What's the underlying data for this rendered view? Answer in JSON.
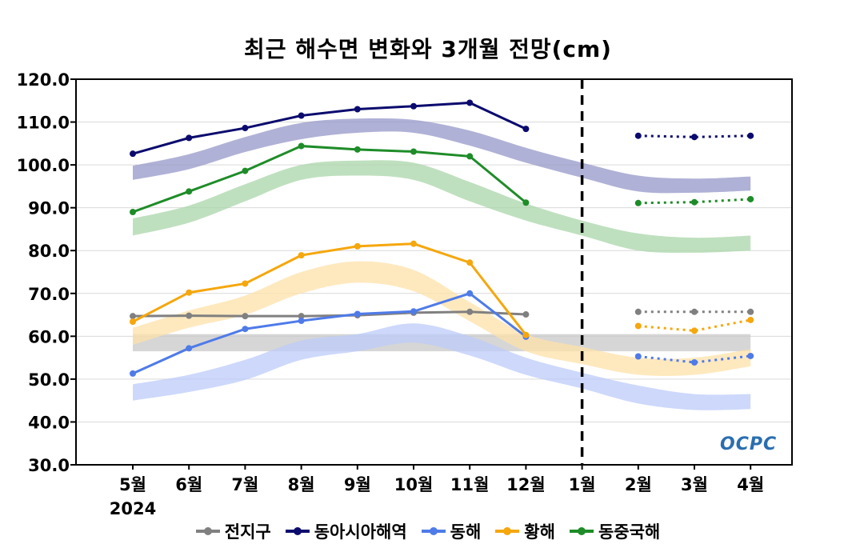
{
  "chart_data": {
    "type": "line",
    "title": "최근 해수면 변화와 3개월 전망(cm)",
    "categories": [
      "5월",
      "6월",
      "7월",
      "8월",
      "9월",
      "10월",
      "11월",
      "12월",
      "1월",
      "2월",
      "3월",
      "4월"
    ],
    "year_label": "2024",
    "yticks": [
      "120.0",
      "110.0",
      "100.0",
      "90.0",
      "80.0",
      "70.0",
      "60.0",
      "50.0",
      "40.0",
      "30.0"
    ],
    "ylim": [
      30,
      120
    ],
    "grid": true,
    "divider_at": "1월",
    "legend_position": "bottom",
    "series": [
      {
        "name": "전지구",
        "color": "#808080",
        "band_color": "#c8c8c8",
        "observed": [
          64.7,
          64.8,
          64.7,
          64.7,
          64.9,
          65.5,
          65.7,
          65.1,
          null,
          null,
          null,
          null
        ],
        "forecast": [
          null,
          null,
          null,
          null,
          null,
          null,
          null,
          null,
          null,
          65.7,
          65.7,
          65.7
        ],
        "band": [
          [
            56.5,
            60.5
          ],
          [
            56.5,
            60.5
          ],
          [
            56.5,
            60.5
          ],
          [
            56.5,
            60.5
          ],
          [
            56.5,
            60.5
          ],
          [
            56.5,
            60.5
          ],
          [
            56.5,
            60.5
          ],
          [
            56.5,
            60.5
          ],
          [
            56.5,
            60.5
          ],
          [
            56.5,
            60.5
          ],
          [
            56.5,
            60.5
          ],
          [
            56.5,
            60.5
          ]
        ]
      },
      {
        "name": "동아시아해역",
        "color": "#0b0b6e",
        "band_color": "#9597c8",
        "observed": [
          102.6,
          106.3,
          108.6,
          111.5,
          113.0,
          113.7,
          114.5,
          108.4,
          null,
          null,
          null,
          null
        ],
        "forecast": [
          null,
          null,
          null,
          null,
          null,
          null,
          null,
          null,
          null,
          106.8,
          106.5,
          106.8
        ],
        "band": [
          [
            96.5,
            99.8
          ],
          [
            99.0,
            102.5
          ],
          [
            103.0,
            106.5
          ],
          [
            106.0,
            109.8
          ],
          [
            107.5,
            110.8
          ],
          [
            107.5,
            110.5
          ],
          [
            104.5,
            108.0
          ],
          [
            100.5,
            104.0
          ],
          [
            97.0,
            100.5
          ],
          [
            93.8,
            97.5
          ],
          [
            93.5,
            96.8
          ],
          [
            94.0,
            97.3
          ]
        ]
      },
      {
        "name": "동해",
        "color": "#4f7be8",
        "band_color": "#bccbfa",
        "observed": [
          51.3,
          57.2,
          61.7,
          63.6,
          65.2,
          65.8,
          70.0,
          59.9,
          null,
          null,
          null,
          null
        ],
        "forecast": [
          null,
          null,
          null,
          null,
          null,
          null,
          null,
          null,
          null,
          55.3,
          53.9,
          55.4
        ],
        "band": [
          [
            45.0,
            48.8
          ],
          [
            47.0,
            51.0
          ],
          [
            49.8,
            54.5
          ],
          [
            54.5,
            59.0
          ],
          [
            56.5,
            60.5
          ],
          [
            58.5,
            63.0
          ],
          [
            55.5,
            60.0
          ],
          [
            51.0,
            55.0
          ],
          [
            47.8,
            51.5
          ],
          [
            44.3,
            48.5
          ],
          [
            42.8,
            46.5
          ],
          [
            43.0,
            46.5
          ]
        ]
      },
      {
        "name": "황해",
        "color": "#f5a70d",
        "band_color": "#fde1a9",
        "observed": [
          63.4,
          70.2,
          72.3,
          78.9,
          81.0,
          81.6,
          77.2,
          60.3,
          null,
          null,
          null,
          null
        ],
        "forecast": [
          null,
          null,
          null,
          null,
          null,
          null,
          null,
          null,
          null,
          62.4,
          61.3,
          63.8
        ],
        "band": [
          [
            58.0,
            62.0
          ],
          [
            62.0,
            66.0
          ],
          [
            65.0,
            69.5
          ],
          [
            70.0,
            75.0
          ],
          [
            72.5,
            77.5
          ],
          [
            70.5,
            75.5
          ],
          [
            63.5,
            68.0
          ],
          [
            56.5,
            60.5
          ],
          [
            53.5,
            57.5
          ],
          [
            51.0,
            55.0
          ],
          [
            51.0,
            55.0
          ],
          [
            53.0,
            57.0
          ]
        ]
      },
      {
        "name": "동중국해",
        "color": "#1e8c28",
        "band_color": "#a9d6a9",
        "observed": [
          89.0,
          93.8,
          98.6,
          104.4,
          103.6,
          103.1,
          102.0,
          91.2,
          null,
          null,
          null,
          null
        ],
        "forecast": [
          null,
          null,
          null,
          null,
          null,
          null,
          null,
          null,
          null,
          91.1,
          91.3,
          92.0
        ],
        "band": [
          [
            83.5,
            87.5
          ],
          [
            86.5,
            90.5
          ],
          [
            91.5,
            95.5
          ],
          [
            96.5,
            100.0
          ],
          [
            97.5,
            101.0
          ],
          [
            96.5,
            100.5
          ],
          [
            91.5,
            96.0
          ],
          [
            87.0,
            91.0
          ],
          [
            83.5,
            87.0
          ],
          [
            80.0,
            84.0
          ],
          [
            79.5,
            83.0
          ],
          [
            80.0,
            83.5
          ]
        ]
      }
    ]
  },
  "watermark": "OCPC"
}
